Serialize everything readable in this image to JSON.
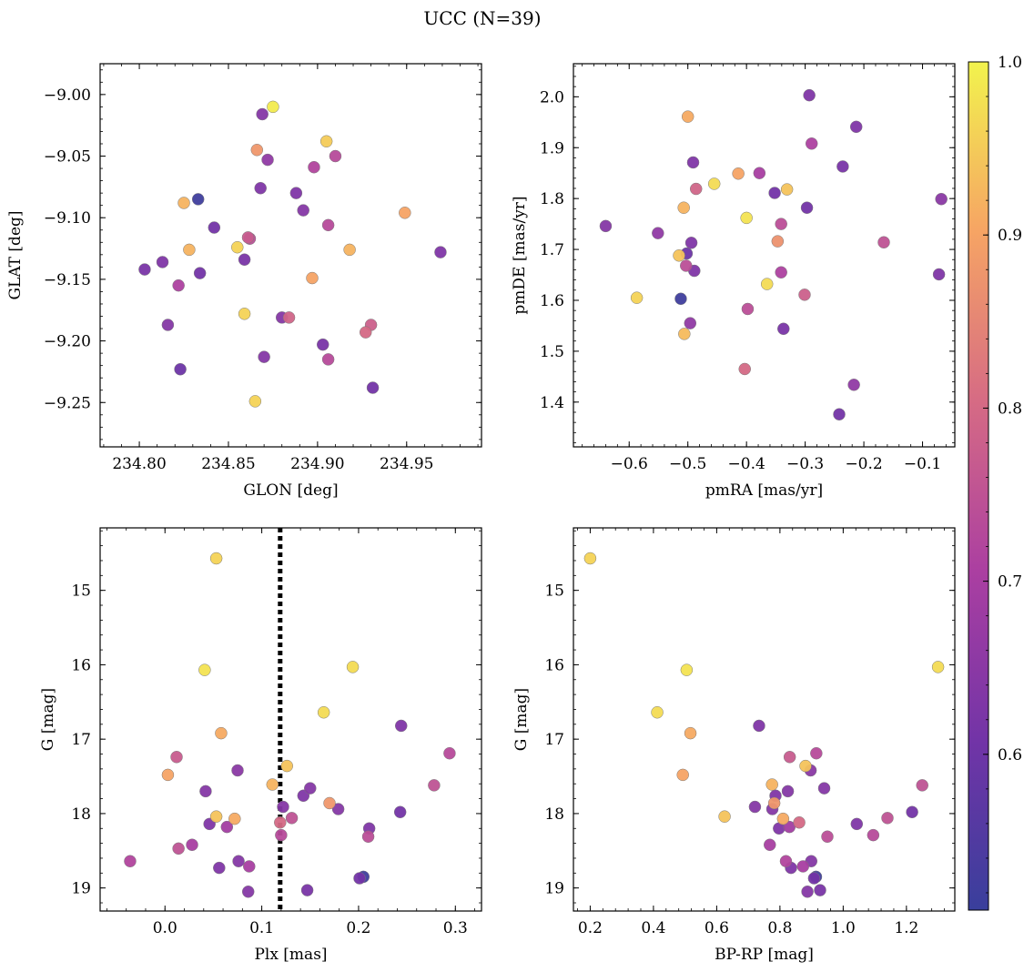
{
  "figure": {
    "title": "UCC (N=39)"
  },
  "colorbar": {
    "ticks": [
      "1.0",
      "0.9",
      "0.8",
      "0.7",
      "0.6"
    ],
    "tick_values": [
      1.0,
      0.9,
      0.8,
      0.7,
      0.6
    ],
    "range": [
      0.51,
      1.0
    ],
    "colormap": "plasma"
  },
  "chart_data": [
    {
      "type": "scatter",
      "title": "",
      "xlabel": "GLON [deg]",
      "ylabel": "GLAT [deg]",
      "xlim": [
        234.778,
        234.992
      ],
      "ylim": [
        -9.286,
        -8.975
      ],
      "y_inverted": false,
      "xticks": [
        234.8,
        234.85,
        234.9,
        234.95
      ],
      "xtick_labels": [
        "234.80",
        "234.85",
        "234.90",
        "234.95"
      ],
      "yticks": [
        -9.0,
        -9.05,
        -9.1,
        -9.15,
        -9.2,
        -9.25
      ],
      "ytick_labels": [
        "−9.00",
        "−9.05",
        "−9.10",
        "−9.15",
        "−9.20",
        "−9.25"
      ],
      "vline": null,
      "points": [
        {
          "x": 234.803,
          "y": -9.142,
          "c": 0.62
        },
        {
          "x": 234.813,
          "y": -9.136,
          "c": 0.63
        },
        {
          "x": 234.816,
          "y": -9.187,
          "c": 0.64
        },
        {
          "x": 234.822,
          "y": -9.155,
          "c": 0.71
        },
        {
          "x": 234.823,
          "y": -9.223,
          "c": 0.6
        },
        {
          "x": 234.825,
          "y": -9.088,
          "c": 0.92
        },
        {
          "x": 234.828,
          "y": -9.126,
          "c": 0.92
        },
        {
          "x": 234.833,
          "y": -9.085,
          "c": 0.52
        },
        {
          "x": 234.834,
          "y": -9.145,
          "c": 0.61
        },
        {
          "x": 234.842,
          "y": -9.108,
          "c": 0.61
        },
        {
          "x": 234.855,
          "y": -9.124,
          "c": 0.96
        },
        {
          "x": 234.859,
          "y": -9.134,
          "c": 0.62
        },
        {
          "x": 234.859,
          "y": -9.178,
          "c": 0.96
        },
        {
          "x": 234.861,
          "y": -9.116,
          "c": 0.77
        },
        {
          "x": 234.862,
          "y": -9.117,
          "c": 0.74
        },
        {
          "x": 234.865,
          "y": -9.249,
          "c": 0.96
        },
        {
          "x": 234.866,
          "y": -9.045,
          "c": 0.88
        },
        {
          "x": 234.868,
          "y": -9.076,
          "c": 0.63
        },
        {
          "x": 234.869,
          "y": -9.016,
          "c": 0.64
        },
        {
          "x": 234.87,
          "y": -9.213,
          "c": 0.64
        },
        {
          "x": 234.872,
          "y": -9.053,
          "c": 0.66
        },
        {
          "x": 234.875,
          "y": -9.01,
          "c": 0.99
        },
        {
          "x": 234.88,
          "y": -9.181,
          "c": 0.64
        },
        {
          "x": 234.884,
          "y": -9.181,
          "c": 0.79
        },
        {
          "x": 234.888,
          "y": -9.08,
          "c": 0.63
        },
        {
          "x": 234.892,
          "y": -9.094,
          "c": 0.64
        },
        {
          "x": 234.897,
          "y": -9.149,
          "c": 0.9
        },
        {
          "x": 234.898,
          "y": -9.059,
          "c": 0.72
        },
        {
          "x": 234.903,
          "y": -9.203,
          "c": 0.62
        },
        {
          "x": 234.905,
          "y": -9.038,
          "c": 0.95
        },
        {
          "x": 234.906,
          "y": -9.106,
          "c": 0.73
        },
        {
          "x": 234.906,
          "y": -9.215,
          "c": 0.73
        },
        {
          "x": 234.91,
          "y": -9.05,
          "c": 0.73
        },
        {
          "x": 234.918,
          "y": -9.126,
          "c": 0.92
        },
        {
          "x": 234.927,
          "y": -9.193,
          "c": 0.8
        },
        {
          "x": 234.93,
          "y": -9.187,
          "c": 0.78
        },
        {
          "x": 234.931,
          "y": -9.238,
          "c": 0.61
        },
        {
          "x": 234.949,
          "y": -9.096,
          "c": 0.9
        },
        {
          "x": 234.969,
          "y": -9.128,
          "c": 0.63
        }
      ]
    },
    {
      "type": "scatter",
      "title": "",
      "xlabel": "pmRA [mas/yr]",
      "ylabel": "pmDE [mas/yr]",
      "xlim": [
        -0.695,
        -0.045
      ],
      "ylim": [
        1.312,
        2.065
      ],
      "y_inverted": false,
      "xticks": [
        -0.6,
        -0.5,
        -0.4,
        -0.3,
        -0.2,
        -0.1
      ],
      "xtick_labels": [
        "−0.6",
        "−0.5",
        "−0.4",
        "−0.3",
        "−0.2",
        "−0.1"
      ],
      "yticks": [
        1.4,
        1.5,
        1.6,
        1.7,
        1.8,
        1.9,
        2.0
      ],
      "ytick_labels": [
        "1.4",
        "1.5",
        "1.6",
        "1.7",
        "1.8",
        "1.9",
        "2.0"
      ],
      "vline": null,
      "points": [
        {
          "x": -0.64,
          "y": 1.746,
          "c": 0.64
        },
        {
          "x": -0.587,
          "y": 1.605,
          "c": 0.96
        },
        {
          "x": -0.551,
          "y": 1.732,
          "c": 0.66
        },
        {
          "x": -0.515,
          "y": 1.688,
          "c": 0.94
        },
        {
          "x": -0.512,
          "y": 1.603,
          "c": 0.52
        },
        {
          "x": -0.507,
          "y": 1.782,
          "c": 0.92
        },
        {
          "x": -0.506,
          "y": 1.534,
          "c": 0.93
        },
        {
          "x": -0.503,
          "y": 1.668,
          "c": 0.74
        },
        {
          "x": -0.502,
          "y": 1.692,
          "c": 0.6
        },
        {
          "x": -0.5,
          "y": 1.961,
          "c": 0.91
        },
        {
          "x": -0.496,
          "y": 1.555,
          "c": 0.66
        },
        {
          "x": -0.494,
          "y": 1.713,
          "c": 0.63
        },
        {
          "x": -0.491,
          "y": 1.871,
          "c": 0.63
        },
        {
          "x": -0.489,
          "y": 1.658,
          "c": 0.63
        },
        {
          "x": -0.486,
          "y": 1.819,
          "c": 0.79
        },
        {
          "x": -0.455,
          "y": 1.829,
          "c": 0.97
        },
        {
          "x": -0.414,
          "y": 1.849,
          "c": 0.9
        },
        {
          "x": -0.403,
          "y": 1.465,
          "c": 0.8
        },
        {
          "x": -0.4,
          "y": 1.762,
          "c": 0.98
        },
        {
          "x": -0.398,
          "y": 1.583,
          "c": 0.74
        },
        {
          "x": -0.378,
          "y": 1.85,
          "c": 0.7
        },
        {
          "x": -0.365,
          "y": 1.632,
          "c": 0.97
        },
        {
          "x": -0.352,
          "y": 1.811,
          "c": 0.61
        },
        {
          "x": -0.347,
          "y": 1.716,
          "c": 0.87
        },
        {
          "x": -0.341,
          "y": 1.75,
          "c": 0.74
        },
        {
          "x": -0.341,
          "y": 1.655,
          "c": 0.71
        },
        {
          "x": -0.337,
          "y": 1.544,
          "c": 0.62
        },
        {
          "x": -0.331,
          "y": 1.818,
          "c": 0.94
        },
        {
          "x": -0.301,
          "y": 1.611,
          "c": 0.78
        },
        {
          "x": -0.297,
          "y": 1.782,
          "c": 0.61
        },
        {
          "x": -0.293,
          "y": 2.003,
          "c": 0.63
        },
        {
          "x": -0.289,
          "y": 1.908,
          "c": 0.71
        },
        {
          "x": -0.242,
          "y": 1.376,
          "c": 0.61
        },
        {
          "x": -0.236,
          "y": 1.863,
          "c": 0.62
        },
        {
          "x": -0.217,
          "y": 1.434,
          "c": 0.66
        },
        {
          "x": -0.213,
          "y": 1.941,
          "c": 0.63
        },
        {
          "x": -0.166,
          "y": 1.714,
          "c": 0.75
        },
        {
          "x": -0.072,
          "y": 1.651,
          "c": 0.63
        },
        {
          "x": -0.068,
          "y": 1.799,
          "c": 0.65
        }
      ]
    },
    {
      "type": "scatter",
      "title": "",
      "xlabel": "Plx [mas]",
      "ylabel": "G [mag]",
      "xlim": [
        -0.067,
        0.327
      ],
      "ylim": [
        19.31,
        14.16
      ],
      "y_inverted": true,
      "xticks": [
        0.0,
        0.1,
        0.2,
        0.3
      ],
      "xtick_labels": [
        "0.0",
        "0.1",
        "0.2",
        "0.3"
      ],
      "yticks": [
        15,
        16,
        17,
        18,
        19
      ],
      "ytick_labels": [
        "15",
        "16",
        "17",
        "18",
        "19"
      ],
      "vline": 0.119,
      "points": [
        {
          "x": -0.036,
          "y": 18.64,
          "c": 0.72
        },
        {
          "x": 0.003,
          "y": 17.48,
          "c": 0.9
        },
        {
          "x": 0.012,
          "y": 17.24,
          "c": 0.77
        },
        {
          "x": 0.014,
          "y": 18.47,
          "c": 0.75
        },
        {
          "x": 0.028,
          "y": 18.42,
          "c": 0.7
        },
        {
          "x": 0.041,
          "y": 16.07,
          "c": 0.98
        },
        {
          "x": 0.042,
          "y": 17.7,
          "c": 0.64
        },
        {
          "x": 0.046,
          "y": 18.14,
          "c": 0.63
        },
        {
          "x": 0.053,
          "y": 14.57,
          "c": 0.96
        },
        {
          "x": 0.053,
          "y": 18.04,
          "c": 0.94
        },
        {
          "x": 0.056,
          "y": 18.73,
          "c": 0.63
        },
        {
          "x": 0.058,
          "y": 16.92,
          "c": 0.91
        },
        {
          "x": 0.064,
          "y": 18.18,
          "c": 0.69
        },
        {
          "x": 0.072,
          "y": 18.07,
          "c": 0.91
        },
        {
          "x": 0.075,
          "y": 17.42,
          "c": 0.65
        },
        {
          "x": 0.076,
          "y": 18.64,
          "c": 0.64
        },
        {
          "x": 0.086,
          "y": 19.05,
          "c": 0.64
        },
        {
          "x": 0.087,
          "y": 18.71,
          "c": 0.7
        },
        {
          "x": 0.111,
          "y": 17.61,
          "c": 0.92
        },
        {
          "x": 0.119,
          "y": 18.12,
          "c": 0.8
        },
        {
          "x": 0.12,
          "y": 18.29,
          "c": 0.73
        },
        {
          "x": 0.122,
          "y": 17.91,
          "c": 0.64
        },
        {
          "x": 0.126,
          "y": 17.36,
          "c": 0.94
        },
        {
          "x": 0.131,
          "y": 18.06,
          "c": 0.75
        },
        {
          "x": 0.143,
          "y": 17.76,
          "c": 0.63
        },
        {
          "x": 0.147,
          "y": 19.03,
          "c": 0.62
        },
        {
          "x": 0.15,
          "y": 17.66,
          "c": 0.64
        },
        {
          "x": 0.164,
          "y": 16.64,
          "c": 0.97
        },
        {
          "x": 0.17,
          "y": 17.86,
          "c": 0.88
        },
        {
          "x": 0.179,
          "y": 17.94,
          "c": 0.64
        },
        {
          "x": 0.194,
          "y": 16.03,
          "c": 0.97
        },
        {
          "x": 0.201,
          "y": 18.87,
          "c": 0.61
        },
        {
          "x": 0.205,
          "y": 18.85,
          "c": 0.52
        },
        {
          "x": 0.21,
          "y": 18.31,
          "c": 0.74
        },
        {
          "x": 0.211,
          "y": 18.2,
          "c": 0.63
        },
        {
          "x": 0.243,
          "y": 17.98,
          "c": 0.61
        },
        {
          "x": 0.244,
          "y": 16.82,
          "c": 0.63
        },
        {
          "x": 0.278,
          "y": 17.62,
          "c": 0.75
        },
        {
          "x": 0.294,
          "y": 17.19,
          "c": 0.73
        }
      ]
    },
    {
      "type": "scatter",
      "title": "",
      "xlabel": "BP-RP [mag]",
      "ylabel": "G [mag]",
      "xlim": [
        0.147,
        1.353
      ],
      "ylim": [
        19.31,
        14.16
      ],
      "y_inverted": true,
      "xticks": [
        0.2,
        0.4,
        0.6,
        0.8,
        1.0,
        1.2
      ],
      "xtick_labels": [
        "0.2",
        "0.4",
        "0.6",
        "0.8",
        "1.0",
        "1.2"
      ],
      "yticks": [
        15,
        16,
        17,
        18,
        19
      ],
      "ytick_labels": [
        "15",
        "16",
        "17",
        "18",
        "19"
      ],
      "vline": null,
      "points": [
        {
          "x": 0.2,
          "y": 14.57,
          "c": 0.96
        },
        {
          "x": 0.412,
          "y": 16.64,
          "c": 0.97
        },
        {
          "x": 0.493,
          "y": 17.48,
          "c": 0.9
        },
        {
          "x": 0.505,
          "y": 16.07,
          "c": 0.98
        },
        {
          "x": 0.517,
          "y": 16.92,
          "c": 0.91
        },
        {
          "x": 0.625,
          "y": 18.04,
          "c": 0.94
        },
        {
          "x": 0.721,
          "y": 17.91,
          "c": 0.64
        },
        {
          "x": 0.734,
          "y": 16.82,
          "c": 0.63
        },
        {
          "x": 0.768,
          "y": 18.42,
          "c": 0.7
        },
        {
          "x": 0.775,
          "y": 17.61,
          "c": 0.92
        },
        {
          "x": 0.776,
          "y": 17.94,
          "c": 0.64
        },
        {
          "x": 0.782,
          "y": 17.86,
          "c": 0.88
        },
        {
          "x": 0.786,
          "y": 17.76,
          "c": 0.63
        },
        {
          "x": 0.797,
          "y": 18.2,
          "c": 0.63
        },
        {
          "x": 0.81,
          "y": 18.07,
          "c": 0.91
        },
        {
          "x": 0.819,
          "y": 18.64,
          "c": 0.72
        },
        {
          "x": 0.825,
          "y": 17.7,
          "c": 0.64
        },
        {
          "x": 0.83,
          "y": 18.18,
          "c": 0.69
        },
        {
          "x": 0.831,
          "y": 17.24,
          "c": 0.77
        },
        {
          "x": 0.835,
          "y": 18.73,
          "c": 0.63
        },
        {
          "x": 0.861,
          "y": 18.12,
          "c": 0.8
        },
        {
          "x": 0.873,
          "y": 18.71,
          "c": 0.7
        },
        {
          "x": 0.881,
          "y": 17.36,
          "c": 0.94
        },
        {
          "x": 0.887,
          "y": 19.05,
          "c": 0.64
        },
        {
          "x": 0.897,
          "y": 17.42,
          "c": 0.65
        },
        {
          "x": 0.899,
          "y": 18.64,
          "c": 0.64
        },
        {
          "x": 0.908,
          "y": 18.87,
          "c": 0.61
        },
        {
          "x": 0.914,
          "y": 18.85,
          "c": 0.52
        },
        {
          "x": 0.915,
          "y": 17.19,
          "c": 0.73
        },
        {
          "x": 0.927,
          "y": 19.03,
          "c": 0.62
        },
        {
          "x": 0.94,
          "y": 17.66,
          "c": 0.64
        },
        {
          "x": 0.95,
          "y": 18.31,
          "c": 0.74
        },
        {
          "x": 1.043,
          "y": 18.14,
          "c": 0.63
        },
        {
          "x": 1.095,
          "y": 18.29,
          "c": 0.73
        },
        {
          "x": 1.14,
          "y": 18.06,
          "c": 0.75
        },
        {
          "x": 1.218,
          "y": 17.98,
          "c": 0.61
        },
        {
          "x": 1.25,
          "y": 17.62,
          "c": 0.75
        },
        {
          "x": 1.3,
          "y": 16.03,
          "c": 0.97
        }
      ]
    }
  ]
}
